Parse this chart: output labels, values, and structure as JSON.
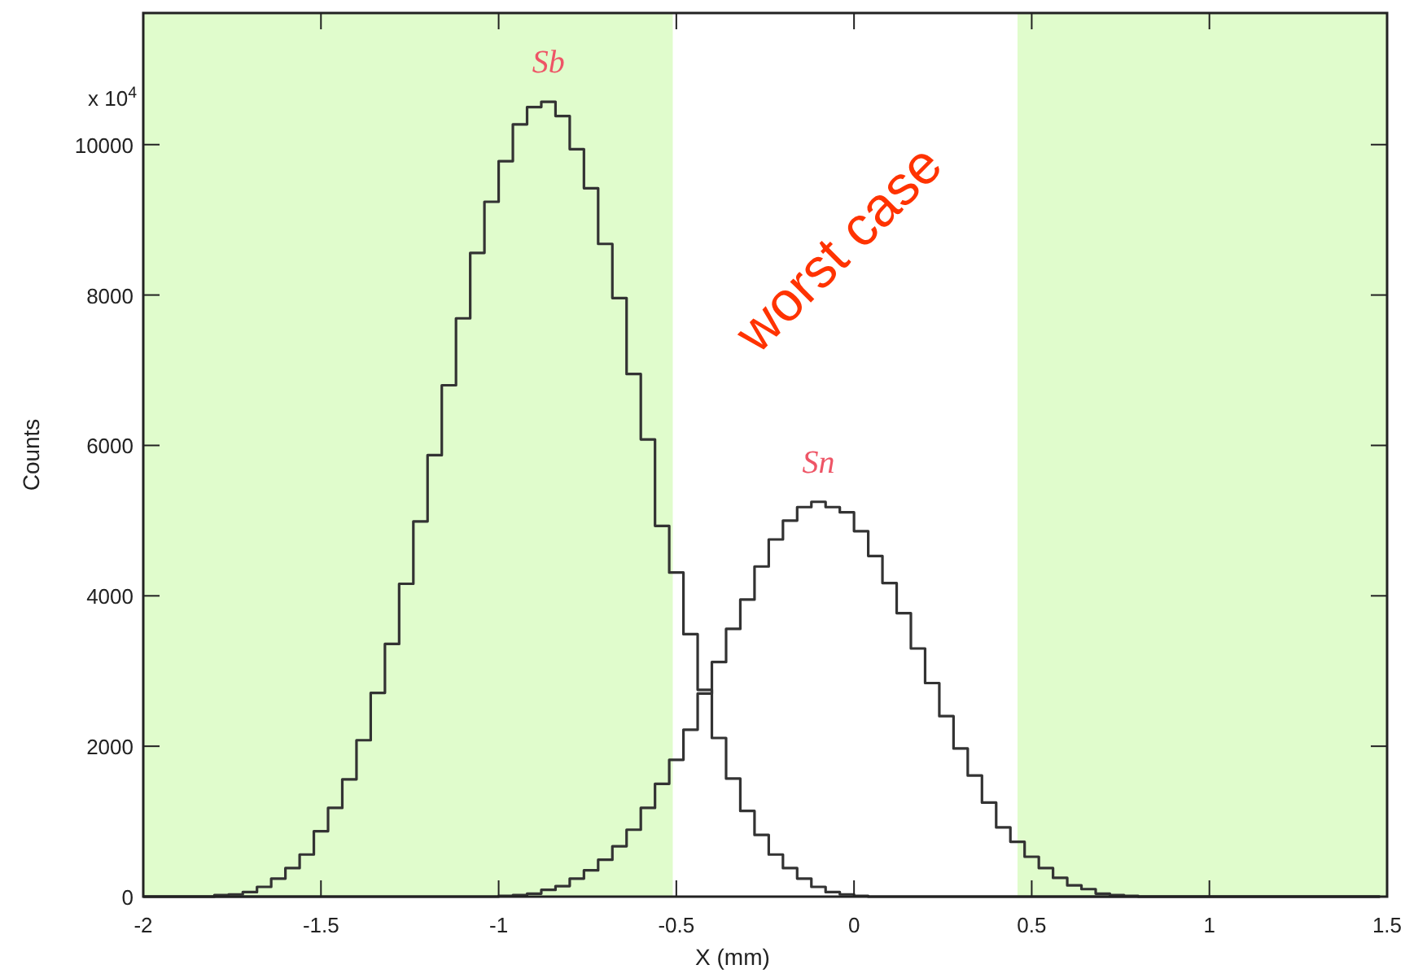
{
  "chart_data": {
    "type": "histogram",
    "xlabel": "X (mm)",
    "ylabel": "Counts",
    "bins": [
      -2,
      -1.96,
      -1.92,
      -1.88,
      -1.84,
      -1.8,
      -1.76,
      -1.72,
      -1.68,
      -1.64,
      -1.6,
      -1.56,
      -1.52,
      -1.48,
      -1.44,
      -1.4,
      -1.36,
      -1.32,
      -1.28,
      -1.24,
      -1.2,
      -1.16,
      -1.12,
      -1.08,
      -1.04,
      -1,
      -0.96,
      -0.92,
      -0.88,
      -0.84,
      -0.8,
      -0.76,
      -0.72,
      -0.68,
      -0.64,
      -0.6,
      -0.56,
      -0.52,
      -0.48,
      -0.44,
      -0.4,
      -0.36,
      -0.32,
      -0.28,
      -0.24,
      -0.2,
      -0.16,
      -0.12,
      -0.08,
      -0.04,
      0,
      0.04,
      0.08,
      0.12,
      0.16,
      0.2,
      0.24,
      0.28,
      0.32,
      0.36,
      0.4,
      0.44,
      0.48,
      0.52,
      0.56,
      0.6,
      0.64,
      0.68,
      0.72,
      0.76,
      0.8,
      0.84,
      0.88,
      0.92,
      0.96,
      1,
      1.04,
      1.08,
      1.12,
      1.16,
      1.2,
      1.24,
      1.28,
      1.32,
      1.36,
      1.4,
      1.44,
      1.48
    ],
    "series": [
      {
        "name": "Sb",
        "color": "#333333",
        "values": [
          0,
          0,
          0,
          0,
          0,
          20,
          30,
          60,
          130,
          240,
          380,
          560,
          870,
          1180,
          1560,
          2080,
          2710,
          3360,
          4160,
          4990,
          5870,
          6800,
          7690,
          8560,
          9240,
          9780,
          10270,
          10500,
          10570,
          10380,
          9940,
          9420,
          8680,
          7960,
          6950,
          6080,
          4930,
          4310,
          3490,
          2750,
          2110,
          1570,
          1140,
          820,
          560,
          380,
          240,
          130,
          60,
          30,
          10,
          0,
          0,
          0,
          0,
          0,
          0,
          0,
          0,
          0,
          0,
          0,
          0,
          0,
          0,
          0,
          0,
          0,
          0,
          0,
          0,
          0,
          0,
          0,
          0,
          0,
          0,
          0,
          0,
          0,
          0,
          0,
          0,
          0,
          0,
          0,
          0
        ]
      },
      {
        "name": "Sn",
        "color": "#333333",
        "values": [
          0,
          0,
          0,
          0,
          0,
          0,
          0,
          0,
          0,
          0,
          0,
          0,
          0,
          0,
          0,
          0,
          0,
          0,
          0,
          0,
          0,
          0,
          0,
          0,
          0,
          10,
          20,
          40,
          90,
          140,
          240,
          350,
          490,
          670,
          890,
          1180,
          1500,
          1820,
          2220,
          2700,
          3120,
          3560,
          3950,
          4390,
          4750,
          5000,
          5180,
          5250,
          5180,
          5110,
          4860,
          4530,
          4170,
          3770,
          3300,
          2840,
          2400,
          1970,
          1610,
          1250,
          920,
          730,
          530,
          380,
          250,
          150,
          100,
          40,
          20,
          10,
          0,
          0,
          0,
          0,
          0,
          0,
          0,
          0,
          0,
          0,
          0,
          0,
          0,
          0,
          0,
          0,
          0
        ]
      }
    ],
    "xlim": [
      -2,
      1.5
    ],
    "xticks": [
      -2,
      -1.5,
      -1,
      -0.5,
      0,
      0.5,
      1,
      1.5
    ],
    "ylim": [
      0,
      11750
    ],
    "yticks": [
      0,
      2000,
      4000,
      6000,
      8000,
      10000
    ],
    "bands": [
      {
        "axis": "x",
        "from": -2,
        "to": -0.51,
        "color": "#e0fccc"
      },
      {
        "axis": "x",
        "from": 0.46,
        "to": 1.5,
        "color": "#e0fccc"
      }
    ],
    "annotations": [
      "x 10$^{4}$",
      "worst case"
    ],
    "grid": false
  }
}
